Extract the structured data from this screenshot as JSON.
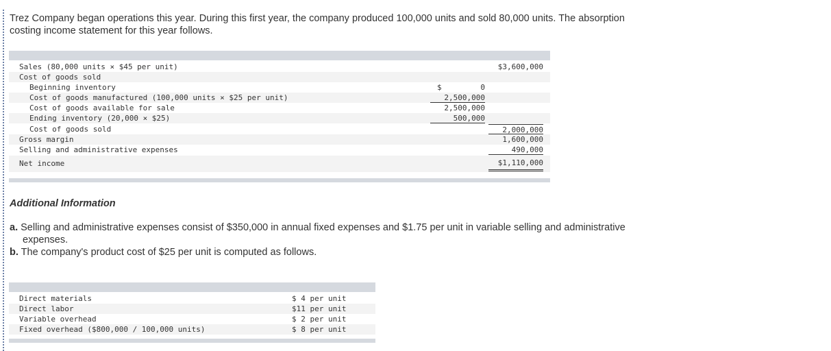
{
  "intro": "Trez Company began operations this year. During this first year, the company produced 100,000 units and sold 80,000 units. The absorption costing income statement for this year follows.",
  "income_statement": {
    "rows": {
      "sales": {
        "label": "Sales (80,000 units × $45 per unit)",
        "c2": "$3,600,000"
      },
      "cogs_header": {
        "label": "Cost of goods sold"
      },
      "beginning_inventory": {
        "label": "Beginning inventory",
        "currency": "$",
        "c1": "0"
      },
      "cost_manufactured": {
        "label": "Cost of goods manufactured (100,000 units × $25 per unit)",
        "c1": "2,500,000"
      },
      "cost_available": {
        "label": "Cost of goods available for sale",
        "c1": "2,500,000"
      },
      "ending_inventory": {
        "label": "Ending inventory (20,000 × $25)",
        "c1": "500,000"
      },
      "cogs": {
        "label": "Cost of goods sold",
        "c2": "2,000,000"
      },
      "gross_margin": {
        "label": "Gross margin",
        "c2": "1,600,000"
      },
      "selling_admin": {
        "label": "Selling and administrative expenses",
        "c2": "490,000"
      },
      "net_income": {
        "label": "Net income",
        "c2": "$1,110,000"
      }
    }
  },
  "additional": {
    "title": "Additional Information",
    "a_marker": "a.",
    "a_text": "Selling and administrative expenses consist of $350,000 in annual fixed expenses and $1.75 per unit in variable selling and administrative expenses.",
    "b_marker": "b.",
    "b_text": "The company's product cost of $25 per unit is computed as follows."
  },
  "product_cost": {
    "rows": [
      {
        "label": "Direct materials",
        "amount": "$ 4 per unit"
      },
      {
        "label": "Direct labor",
        "amount": "$11 per unit"
      },
      {
        "label": "Variable overhead",
        "amount": "$ 2 per unit"
      },
      {
        "label": "Fixed overhead ($800,000 / 100,000 units)",
        "amount": "$ 8 per unit"
      }
    ]
  }
}
